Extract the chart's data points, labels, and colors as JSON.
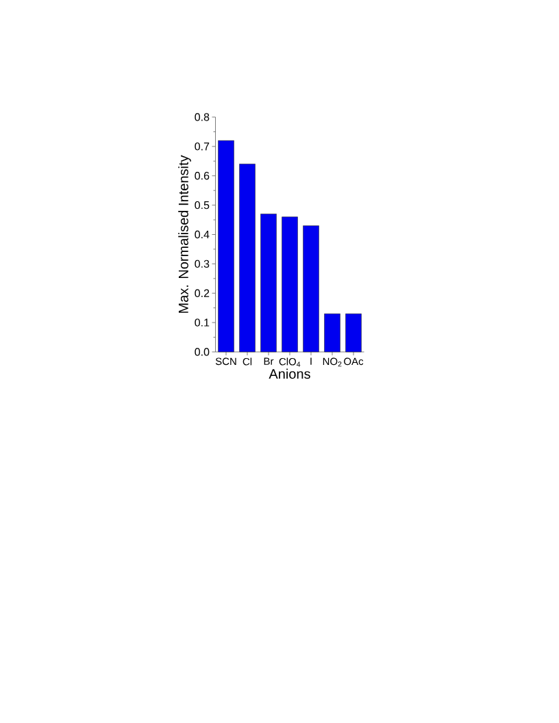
{
  "chart_data": {
    "type": "bar",
    "xlabel": "Anions",
    "ylabel": "Max. Normalised Intensity",
    "categories": [
      "SCN",
      "Cl",
      "Br",
      "ClO$_{4}$",
      "I",
      "NO$_{2}$",
      "OAc"
    ],
    "values": [
      0.72,
      0.64,
      0.47,
      0.46,
      0.43,
      0.13,
      0.13
    ],
    "color": "#0000f0",
    "ylim": [
      0,
      0.8
    ],
    "yticks": [
      {
        "value": 0,
        "label": "0.0"
      },
      0.1,
      0.2,
      0.3,
      0.4,
      0.5,
      0.6,
      0.7,
      0.8
    ]
  }
}
